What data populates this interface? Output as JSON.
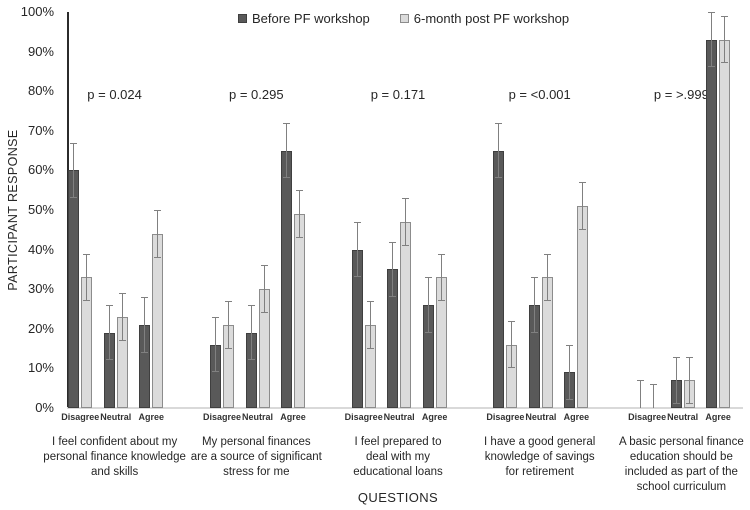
{
  "chart_data": {
    "type": "bar",
    "title": "",
    "ylabel": "PARTICIPANT RESPONSE",
    "xlabel": "QUESTIONS",
    "ylim": [
      0,
      100
    ],
    "ytick_step": 10,
    "ytick_suffix": "%",
    "grid": false,
    "legend_position": "top",
    "categories": [
      "Disagree",
      "Neutral",
      "Agree"
    ],
    "series": [
      {
        "name": "Before PF workshop",
        "color": "#595959",
        "border": "#3f3f3f"
      },
      {
        "name": "6-month post PF workshop",
        "color": "#dbdbdb",
        "border": "#8c8c8c"
      }
    ],
    "error_color": "#808080",
    "groups": [
      {
        "question_lines": [
          "I feel confident about my",
          "personal finance knowledge",
          "and skills"
        ],
        "p_value": "p = 0.024",
        "values": [
          [
            60,
            19,
            21
          ],
          [
            33,
            23,
            44
          ]
        ],
        "errors": [
          [
            7,
            7,
            7
          ],
          [
            6,
            6,
            6
          ]
        ]
      },
      {
        "question_lines": [
          "My personal finances",
          "are a source of significant",
          "stress for me"
        ],
        "p_value": "p = 0.295",
        "values": [
          [
            16,
            19,
            65
          ],
          [
            21,
            30,
            49
          ]
        ],
        "errors": [
          [
            7,
            7,
            7
          ],
          [
            6,
            6,
            6
          ]
        ]
      },
      {
        "question_lines": [
          "I feel prepared to",
          "deal with my",
          "educational loans"
        ],
        "p_value": "p = 0.171",
        "values": [
          [
            40,
            35,
            26
          ],
          [
            21,
            47,
            33
          ]
        ],
        "errors": [
          [
            7,
            7,
            7
          ],
          [
            6,
            6,
            6
          ]
        ]
      },
      {
        "question_lines": [
          "I have a good general",
          "knowledge of savings",
          "for retirement"
        ],
        "p_value": "p = <0.001",
        "values": [
          [
            65,
            26,
            9
          ],
          [
            16,
            33,
            51
          ]
        ],
        "errors": [
          [
            7,
            7,
            7
          ],
          [
            6,
            6,
            6
          ]
        ]
      },
      {
        "question_lines": [
          "A basic personal finance",
          "education should be",
          "included as part of the",
          "school curriculum"
        ],
        "p_value": "p = >.999",
        "values": [
          [
            0,
            7,
            93
          ],
          [
            0,
            7,
            93
          ]
        ],
        "errors": [
          [
            7,
            6,
            7
          ],
          [
            6,
            6,
            6
          ]
        ]
      }
    ]
  }
}
